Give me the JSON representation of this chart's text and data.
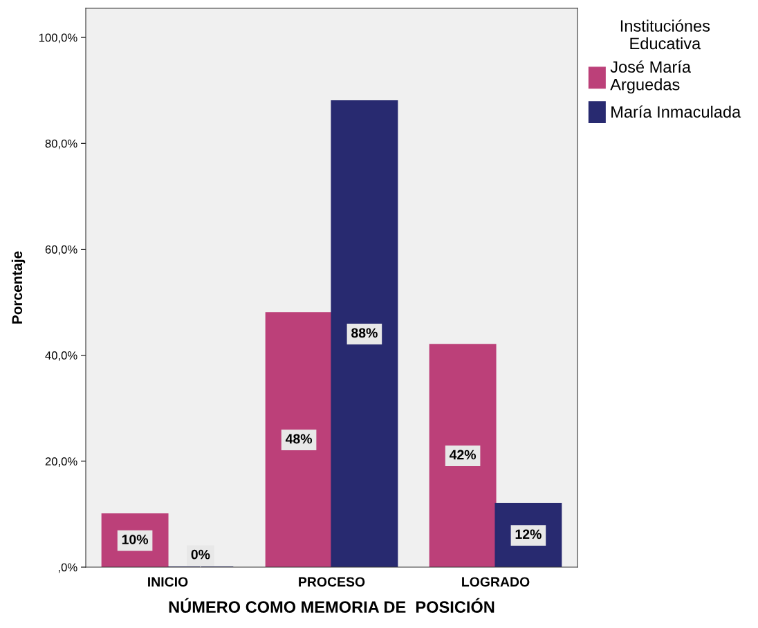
{
  "chart_data": {
    "type": "bar",
    "xlabel": "NÚMERO COMO MEMORIA DE  POSICIÓN",
    "ylabel": "Porcentaje",
    "legend_title": "Instituciónes\nEducativa",
    "categories": [
      "INICIO",
      "PROCESO",
      "LOGRADO"
    ],
    "series": [
      {
        "name": "José María\nArguedas",
        "color": "#bc4079",
        "values": [
          10,
          48,
          42
        ],
        "value_labels": [
          "10%",
          "48%",
          "42%"
        ]
      },
      {
        "name": "María Inmaculada",
        "color": "#282a70",
        "values": [
          0,
          88,
          12
        ],
        "value_labels": [
          "0%",
          "88%",
          "12%"
        ]
      }
    ],
    "ylim": [
      0,
      105.5
    ],
    "yticks": [
      {
        "value": 0,
        "label": ",0%"
      },
      {
        "value": 20,
        "label": "20,0%"
      },
      {
        "value": 40,
        "label": "40,0%"
      },
      {
        "value": 60,
        "label": "60,0%"
      },
      {
        "value": 80,
        "label": "80,0%"
      },
      {
        "value": 100,
        "label": "100,0%"
      }
    ],
    "grid": false,
    "legend": "top right"
  }
}
